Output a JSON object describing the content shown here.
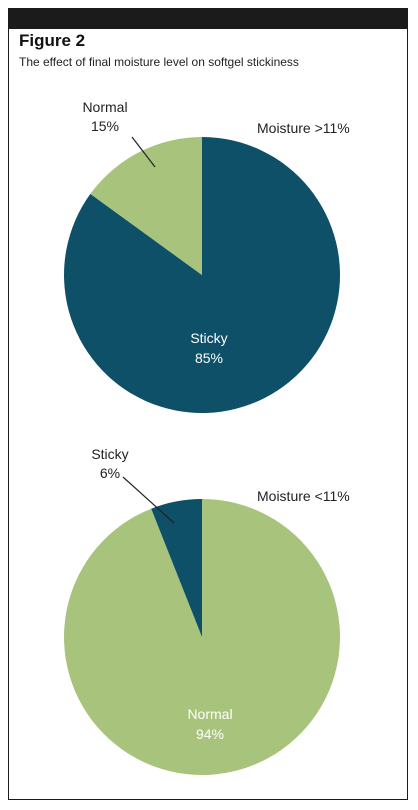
{
  "figure": {
    "title": "Figure 2",
    "subtitle": "The effect of final moisture level on softgel stickiness"
  },
  "colors": {
    "sticky": "#0e5068",
    "normal": "#a8c47c",
    "leader": "#222222"
  },
  "chart_data": [
    {
      "type": "pie",
      "title": "Moisture >11%",
      "slices": [
        {
          "label": "Sticky",
          "value": 85,
          "value_label": "85%"
        },
        {
          "label": "Normal",
          "value": 15,
          "value_label": "15%"
        }
      ]
    },
    {
      "type": "pie",
      "title": "Moisture <11%",
      "slices": [
        {
          "label": "Normal",
          "value": 94,
          "value_label": "94%"
        },
        {
          "label": "Sticky",
          "value": 6,
          "value_label": "6%"
        }
      ]
    }
  ]
}
